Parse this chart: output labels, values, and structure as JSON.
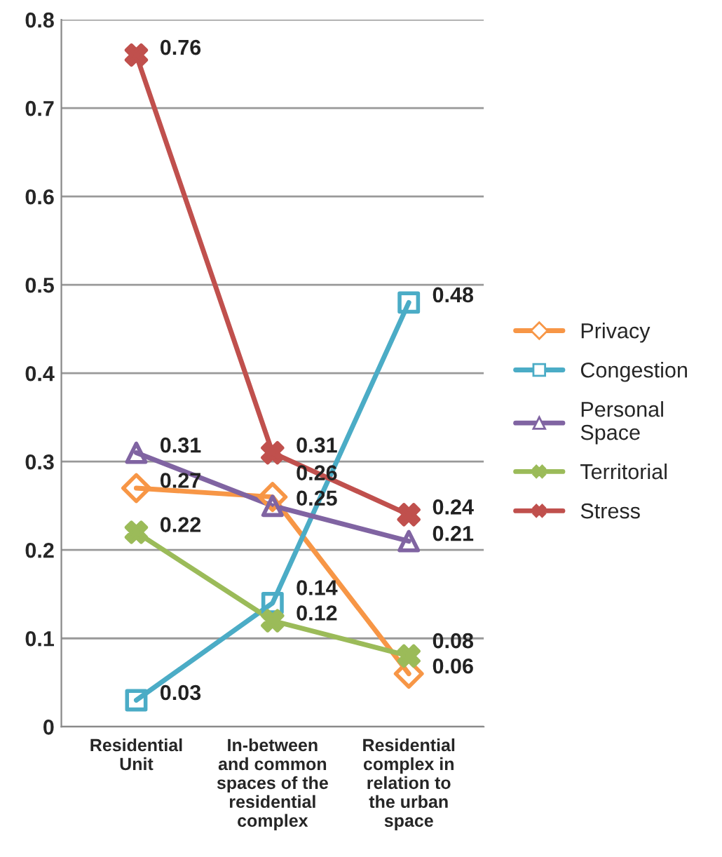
{
  "chart_data": {
    "type": "line",
    "categories": [
      "Residential\nUnit",
      "In-between\nand common\nspaces of the\nresidential\ncomplex",
      "Residential\ncomplex in\nrelation to\nthe urban\nspace"
    ],
    "series": [
      {
        "name": "Privacy",
        "color": "#f79646",
        "marker": "diamond",
        "values": [
          0.27,
          0.26,
          0.06
        ]
      },
      {
        "name": "Congestion",
        "color": "#4bacc6",
        "marker": "square",
        "values": [
          0.03,
          0.14,
          0.48
        ]
      },
      {
        "name": "Personal\nSpace",
        "color": "#8064a2",
        "marker": "triangle",
        "values": [
          0.31,
          0.25,
          0.21
        ]
      },
      {
        "name": "Territorial",
        "color": "#9bbb59",
        "marker": "cross",
        "values": [
          0.22,
          0.12,
          0.08
        ]
      },
      {
        "name": "Stress",
        "color": "#c0504d",
        "marker": "cross",
        "values": [
          0.76,
          0.31,
          0.24
        ]
      }
    ],
    "ylim": [
      0,
      0.8
    ],
    "yticks": [
      0,
      0.1,
      0.2,
      0.3,
      0.4,
      0.5,
      0.6,
      0.7,
      0.8
    ],
    "grid": "y",
    "legend": "right",
    "data_labels": true,
    "line_style": "solid"
  }
}
